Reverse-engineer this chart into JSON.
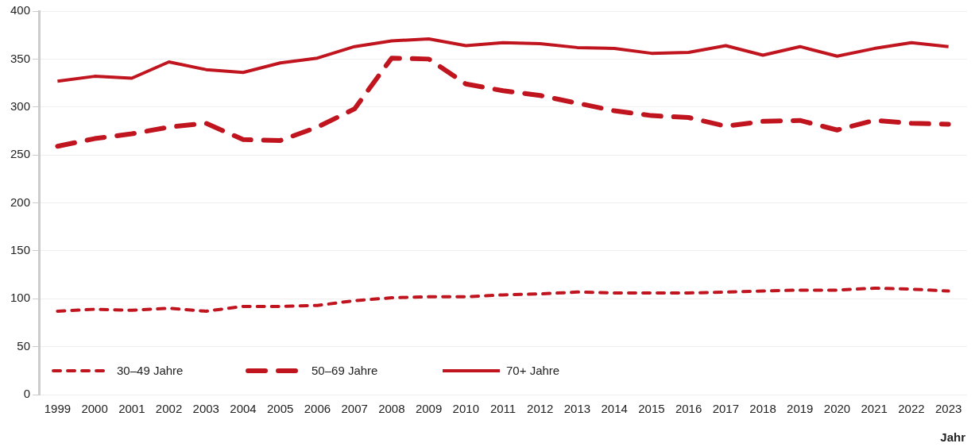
{
  "chart_data": {
    "type": "line",
    "xlabel": "Jahr",
    "categories": [
      "1999",
      "2000",
      "2001",
      "2002",
      "2003",
      "2004",
      "2005",
      "2006",
      "2007",
      "2008",
      "2009",
      "2010",
      "2011",
      "2012",
      "2013",
      "2014",
      "2015",
      "2016",
      "2017",
      "2018",
      "2019",
      "2020",
      "2021",
      "2022",
      "2023"
    ],
    "series": [
      {
        "name": "30–49 Jahre",
        "color": "#c0141f",
        "line_style": "dotted",
        "values": [
          87,
          89,
          88,
          90,
          87,
          92,
          92,
          93,
          98,
          101,
          102,
          102,
          104,
          105,
          107,
          106,
          106,
          106,
          107,
          108,
          109,
          109,
          111,
          110,
          108
        ]
      },
      {
        "name": "50–69 Jahre",
        "color": "#c0141f",
        "line_style": "dashed",
        "values": [
          259,
          267,
          272,
          279,
          283,
          266,
          265,
          279,
          298,
          351,
          350,
          324,
          317,
          312,
          304,
          296,
          291,
          289,
          280,
          285,
          286,
          276,
          286,
          283,
          282
        ]
      },
      {
        "name": "70+ Jahre",
        "color": "#c0141f",
        "line_style": "solid",
        "values": [
          327,
          332,
          330,
          347,
          339,
          336,
          346,
          351,
          363,
          369,
          371,
          364,
          367,
          366,
          362,
          361,
          356,
          357,
          364,
          354,
          363,
          353,
          361,
          367,
          363
        ]
      }
    ],
    "ylim": [
      0,
      400
    ],
    "yticks": [
      0,
      50,
      100,
      150,
      200,
      250,
      300,
      350,
      400
    ],
    "grid": "y",
    "legend": "bottom left",
    "marker": "none"
  }
}
